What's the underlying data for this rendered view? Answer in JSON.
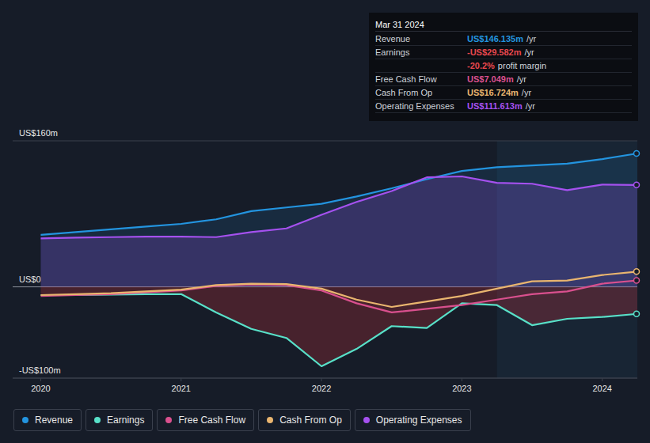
{
  "chart_data": {
    "type": "line",
    "x": [
      2020,
      2020.25,
      2020.5,
      2020.75,
      2021,
      2021.25,
      2021.5,
      2021.75,
      2022,
      2022.25,
      2022.5,
      2022.75,
      2023,
      2023.25,
      2023.5,
      2023.75,
      2024,
      2024.25
    ],
    "xlim": [
      2019.8,
      2024.25
    ],
    "xticks": [
      2020,
      2021,
      2022,
      2023,
      2024
    ],
    "ylim": [
      -100,
      160
    ],
    "yticks": [
      {
        "value": -100,
        "label": "-US$100m"
      },
      {
        "value": 0,
        "label": "US$0"
      },
      {
        "value": 160,
        "label": "US$160m"
      }
    ],
    "grid": true,
    "legend": "bottom",
    "series": [
      {
        "name": "Revenue",
        "color": "#2394df",
        "values": [
          57,
          60,
          63,
          66,
          69,
          74,
          83,
          87,
          91,
          99,
          108,
          118,
          127,
          131,
          133,
          135,
          140,
          146.135
        ]
      },
      {
        "name": "Earnings",
        "color": "#58e0c8",
        "values": [
          -9,
          -9,
          -8.5,
          -8,
          -8,
          -28,
          -46,
          -56,
          -87,
          -68,
          -43,
          -45,
          -18,
          -20,
          -42,
          -35,
          -33,
          -29.582
        ]
      },
      {
        "name": "Free Cash Flow",
        "color": "#d9508e",
        "values": [
          -10,
          -9,
          -8,
          -6,
          -4,
          1,
          2.5,
          2,
          -4,
          -18,
          -28,
          -24,
          -20,
          -14,
          -8,
          -5,
          3.5,
          7.049
        ]
      },
      {
        "name": "Cash From Op",
        "color": "#e9b56f",
        "values": [
          -9,
          -8,
          -7,
          -5,
          -3,
          2,
          3.5,
          3,
          -2,
          -14,
          -22,
          -16,
          -10,
          -2,
          6,
          7,
          13,
          16.724
        ]
      },
      {
        "name": "Operating Expenses",
        "color": "#a551ef",
        "values": [
          53,
          54,
          54.5,
          55,
          55,
          54.5,
          60,
          64,
          79,
          93,
          105,
          120,
          121,
          114,
          113,
          106,
          112,
          111.613
        ]
      }
    ],
    "tooltip": {
      "date": "Mar 31 2024",
      "rows": [
        {
          "label": "Revenue",
          "value": "US$146.135m",
          "unit": "/yr"
        },
        {
          "label": "Earnings",
          "value": "-US$29.582m",
          "unit": "/yr"
        },
        {
          "value": "-20.2%",
          "unit": "profit margin"
        },
        {
          "label": "Free Cash Flow",
          "value": "US$7.049m",
          "unit": "/yr"
        },
        {
          "label": "Cash From Op",
          "value": "US$16.724m",
          "unit": "/yr"
        },
        {
          "label": "Operating Expenses",
          "value": "US$111.613m",
          "unit": "/yr"
        }
      ]
    }
  }
}
